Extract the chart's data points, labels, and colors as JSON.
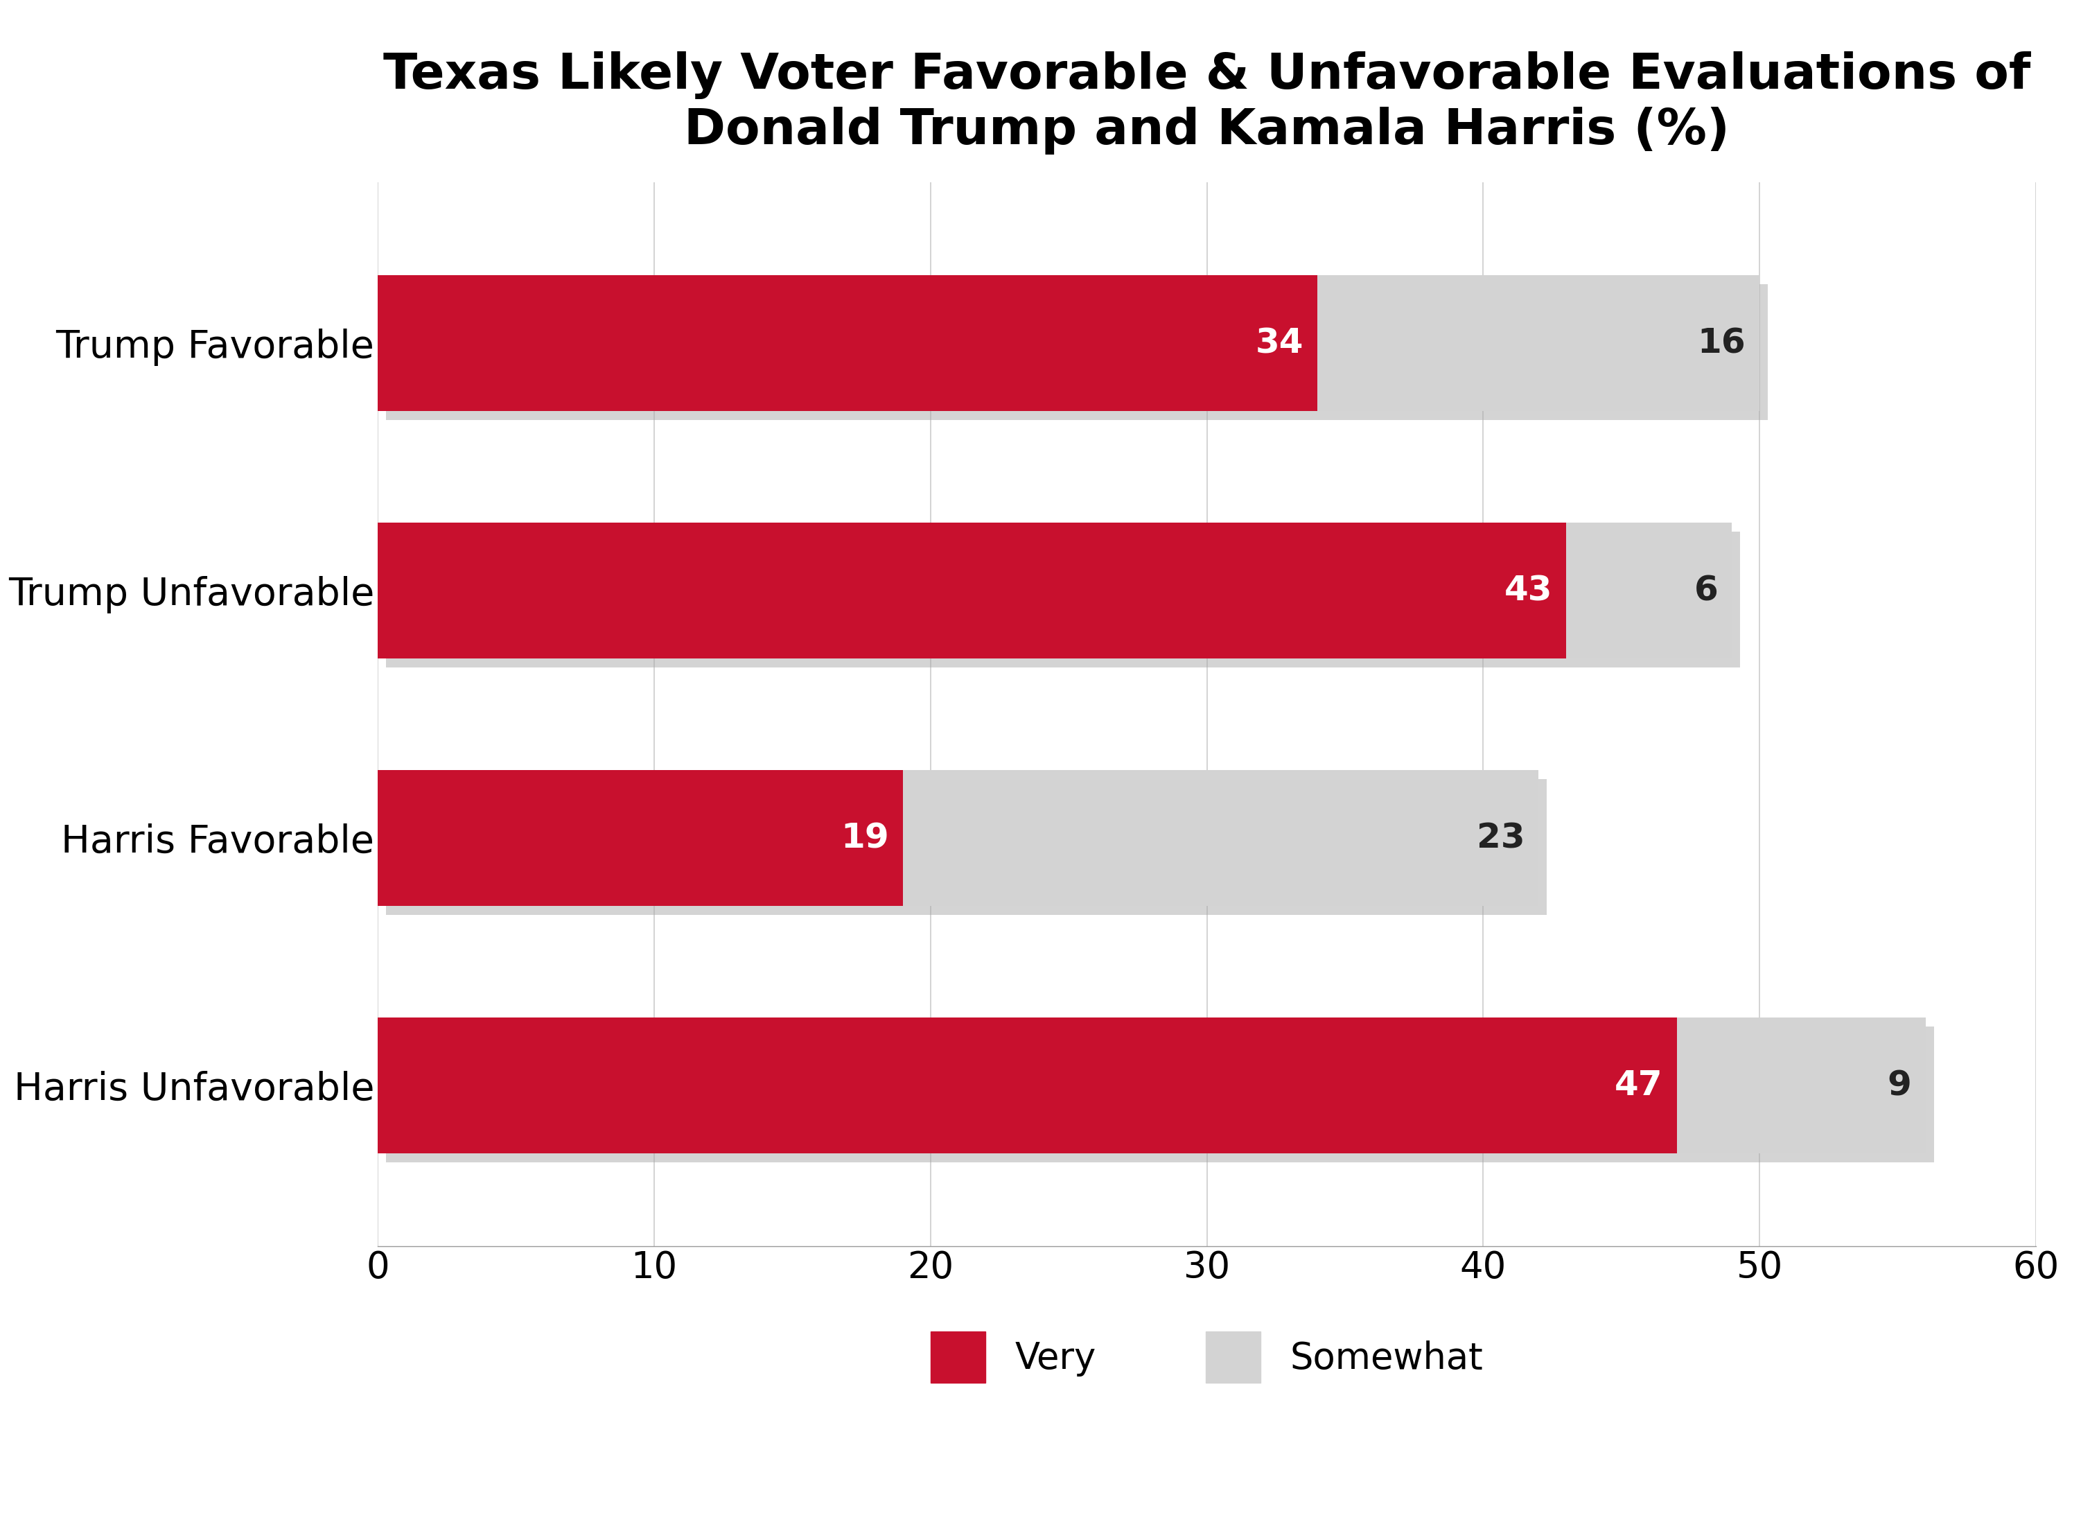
{
  "title": "Texas Likely Voter Favorable & Unfavorable Evaluations of\nDonald Trump and Kamala Harris (%)",
  "categories": [
    "Trump Favorable",
    "Trump Unfavorable",
    "Harris Favorable",
    "Harris Unfavorable"
  ],
  "very_values": [
    34,
    43,
    19,
    47
  ],
  "somewhat_values": [
    16,
    6,
    23,
    9
  ],
  "very_color": "#C8102E",
  "somewhat_color": "#D3D3D3",
  "very_label": "Very",
  "somewhat_label": "Somewhat",
  "xlim": [
    0,
    60
  ],
  "xticks": [
    0,
    10,
    20,
    30,
    40,
    50,
    60
  ],
  "bar_height": 0.55,
  "title_fontsize": 52,
  "tick_fontsize": 38,
  "label_fontsize": 40,
  "value_fontsize": 36,
  "legend_fontsize": 38,
  "background_color": "#FFFFFF",
  "grid_color": "#CCCCCC",
  "shadow_color": "#AAAAAA"
}
